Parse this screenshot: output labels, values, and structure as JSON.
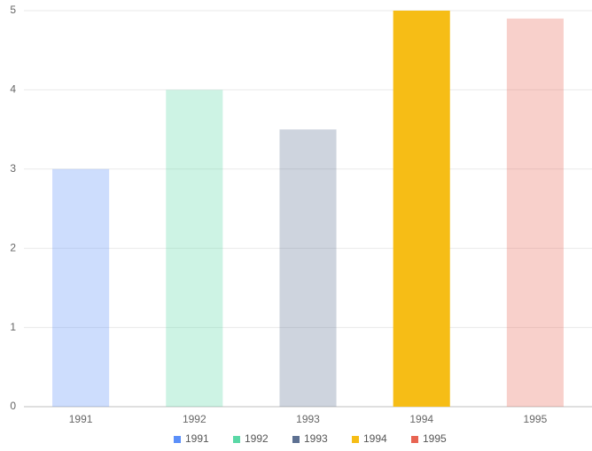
{
  "chart_data": {
    "type": "bar",
    "categories": [
      "1991",
      "1992",
      "1993",
      "1994",
      "1995"
    ],
    "values": [
      3,
      4,
      3.5,
      5,
      4.9
    ],
    "colors": [
      "#5b8ff9",
      "#5ad8a6",
      "#5d7092",
      "#f6bd16",
      "#e86452"
    ],
    "highlight": "1994",
    "ylim": [
      0,
      5
    ],
    "yticks": [
      0,
      1,
      2,
      3,
      4,
      5
    ],
    "grid": true,
    "legend": "bottom",
    "legend_labels": [
      "1991",
      "1992",
      "1993",
      "1994",
      "1995"
    ]
  }
}
